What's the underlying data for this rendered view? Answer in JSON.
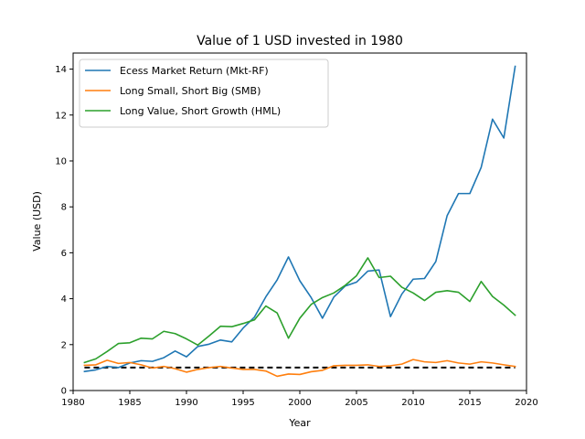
{
  "chart_data": {
    "type": "line",
    "title": "Value of 1 USD invested in 1980",
    "xlabel": "Year",
    "ylabel": "Value (USD)",
    "xlim": [
      1980,
      2020
    ],
    "ylim": [
      0,
      14.7
    ],
    "xticks": [
      1980,
      1985,
      1990,
      1995,
      2000,
      2005,
      2010,
      2015,
      2020
    ],
    "yticks": [
      0,
      2,
      4,
      6,
      8,
      10,
      12,
      14
    ],
    "grid": false,
    "legend_position": "upper-left",
    "x": [
      1981,
      1982,
      1983,
      1984,
      1985,
      1986,
      1987,
      1988,
      1989,
      1990,
      1991,
      1992,
      1993,
      1994,
      1995,
      1996,
      1997,
      1998,
      1999,
      2000,
      2001,
      2002,
      2003,
      2004,
      2005,
      2006,
      2007,
      2008,
      2009,
      2010,
      2011,
      2012,
      2013,
      2014,
      2015,
      2016,
      2017,
      2018,
      2019
    ],
    "series": [
      {
        "name": "Ecess Market Return (Mkt-RF)",
        "color": "#1f77b4",
        "values": [
          0.83,
          0.9,
          1.05,
          1.0,
          1.2,
          1.3,
          1.27,
          1.43,
          1.72,
          1.47,
          1.92,
          2.02,
          2.2,
          2.12,
          2.72,
          3.2,
          4.08,
          4.82,
          5.82,
          4.78,
          4.05,
          3.15,
          4.07,
          4.55,
          4.72,
          5.2,
          5.25,
          3.22,
          4.2,
          4.85,
          4.88,
          5.62,
          7.62,
          8.58,
          8.58,
          9.72,
          11.82,
          11.0,
          14.12
        ]
      },
      {
        "name": "Long Small, Short Big (SMB)",
        "color": "#ff7f0e",
        "values": [
          1.1,
          1.12,
          1.32,
          1.18,
          1.22,
          1.12,
          0.98,
          1.05,
          0.95,
          0.8,
          0.92,
          1.0,
          1.05,
          0.98,
          0.92,
          0.92,
          0.85,
          0.62,
          0.72,
          0.7,
          0.82,
          0.88,
          1.08,
          1.1,
          1.1,
          1.12,
          1.05,
          1.08,
          1.15,
          1.35,
          1.25,
          1.22,
          1.3,
          1.2,
          1.15,
          1.25,
          1.2,
          1.12,
          1.05
        ]
      },
      {
        "name": "Long Value, Short Growth (HML)",
        "color": "#2ca02c",
        "values": [
          1.22,
          1.38,
          1.7,
          2.05,
          2.08,
          2.28,
          2.25,
          2.58,
          2.48,
          2.25,
          1.98,
          2.38,
          2.8,
          2.78,
          2.92,
          3.08,
          3.68,
          3.38,
          2.28,
          3.15,
          3.75,
          4.05,
          4.25,
          4.58,
          5.0,
          5.78,
          4.92,
          4.98,
          4.5,
          4.25,
          3.92,
          4.28,
          4.35,
          4.28,
          3.88,
          4.75,
          4.1,
          3.72,
          3.28
        ]
      }
    ],
    "reference_line": {
      "y": 1,
      "color": "#000000",
      "style": "dashed"
    }
  }
}
